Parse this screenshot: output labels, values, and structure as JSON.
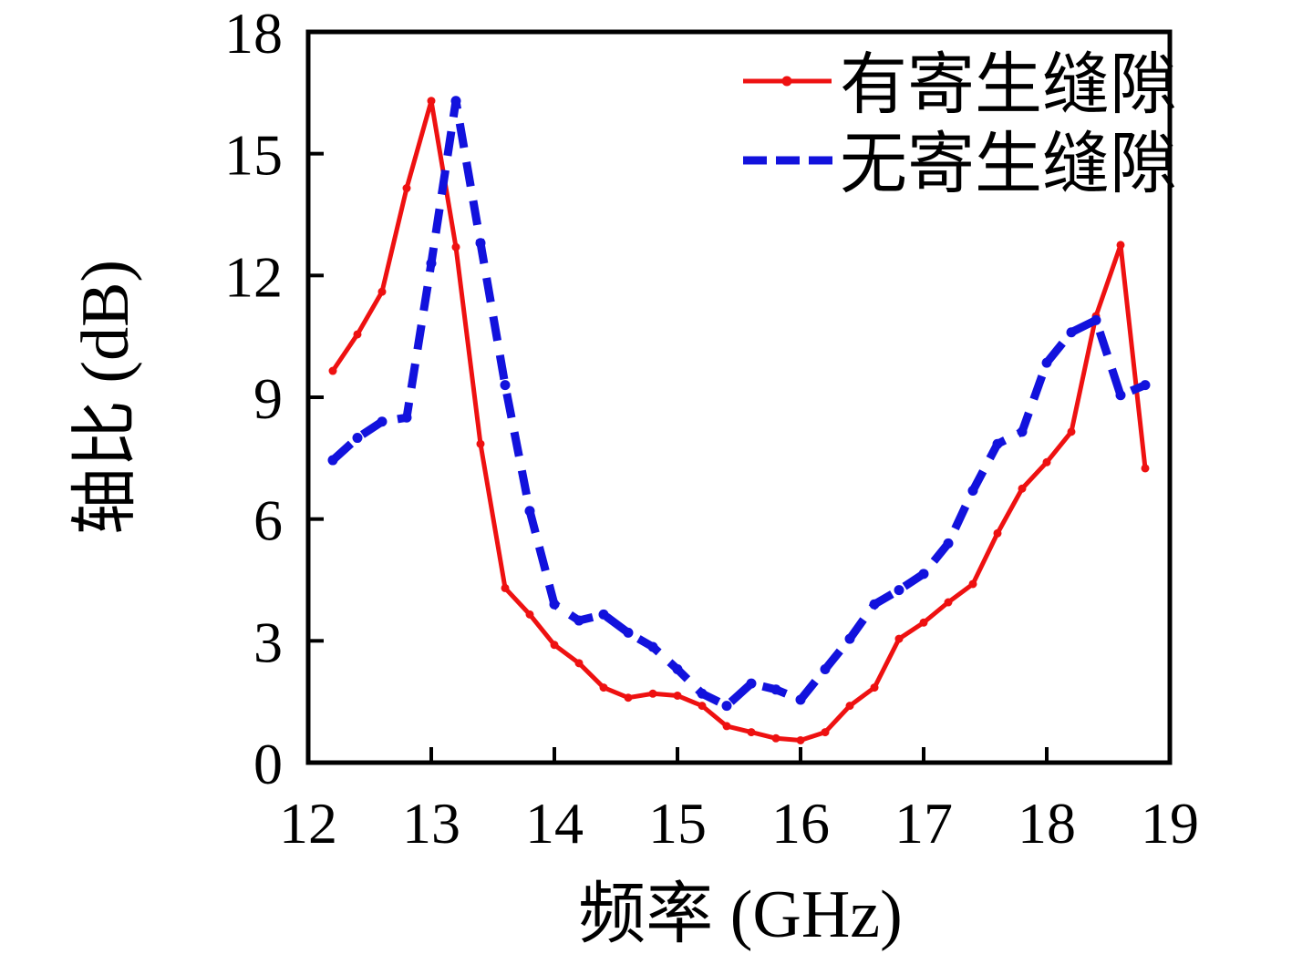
{
  "figure": {
    "background": "#ffffff",
    "text_color": "#000000",
    "axis_color": "#000000"
  },
  "legend": {
    "position": "upper-right",
    "frame": false,
    "items": [
      {
        "label": "有寄生缝隙",
        "color": "#ee1111",
        "style": "solid-line-with-dot-marker"
      },
      {
        "label": "无寄生缝隙",
        "color": "#1212dd",
        "style": "thick-dashed-line"
      }
    ]
  },
  "chart_data": {
    "type": "line",
    "title": "",
    "xlabel": "频率 (GHz)",
    "ylabel": "轴比 (dB)",
    "xlim": [
      12,
      19
    ],
    "ylim": [
      0,
      18
    ],
    "x_ticks": [
      12,
      13,
      14,
      15,
      16,
      17,
      18,
      19
    ],
    "y_ticks": [
      0,
      3,
      6,
      9,
      12,
      15,
      18
    ],
    "grid": false,
    "legend_position": "upper right",
    "series": [
      {
        "name": "有寄生缝隙",
        "color": "#ee1111",
        "line_style": "solid",
        "marker": "dot",
        "x": [
          12.2,
          12.4,
          12.6,
          12.8,
          13.0,
          13.2,
          13.4,
          13.6,
          13.8,
          14.0,
          14.2,
          14.4,
          14.6,
          14.8,
          15.0,
          15.2,
          15.4,
          15.6,
          15.8,
          16.0,
          16.2,
          16.4,
          16.6,
          16.8,
          17.0,
          17.2,
          17.4,
          17.6,
          17.8,
          18.0,
          18.2,
          18.4,
          18.6,
          18.8
        ],
        "y": [
          9.65,
          10.55,
          11.6,
          14.15,
          16.3,
          12.7,
          7.85,
          4.3,
          3.65,
          2.9,
          2.45,
          1.85,
          1.6,
          1.7,
          1.65,
          1.4,
          0.9,
          0.75,
          0.6,
          0.55,
          0.75,
          1.4,
          1.85,
          3.05,
          3.45,
          3.95,
          4.4,
          5.65,
          6.75,
          7.4,
          8.15,
          11.0,
          12.75,
          7.25
        ]
      },
      {
        "name": "无寄生缝隙",
        "color": "#1212dd",
        "line_style": "dashed",
        "marker": "dot",
        "x": [
          12.2,
          12.4,
          12.6,
          12.8,
          13.0,
          13.2,
          13.4,
          13.6,
          13.8,
          14.0,
          14.2,
          14.4,
          14.6,
          14.8,
          15.0,
          15.2,
          15.4,
          15.6,
          15.8,
          16.0,
          16.2,
          16.4,
          16.6,
          16.8,
          17.0,
          17.2,
          17.4,
          17.6,
          17.8,
          18.0,
          18.2,
          18.4,
          18.6,
          18.8
        ],
        "y": [
          7.45,
          8.0,
          8.4,
          8.5,
          12.3,
          16.3,
          12.8,
          9.3,
          6.2,
          3.9,
          3.5,
          3.65,
          3.2,
          2.85,
          2.3,
          1.7,
          1.4,
          1.95,
          1.8,
          1.55,
          2.3,
          3.05,
          3.9,
          4.25,
          4.65,
          5.4,
          6.7,
          7.85,
          8.15,
          9.85,
          10.6,
          10.9,
          9.05,
          9.3
        ]
      }
    ]
  }
}
